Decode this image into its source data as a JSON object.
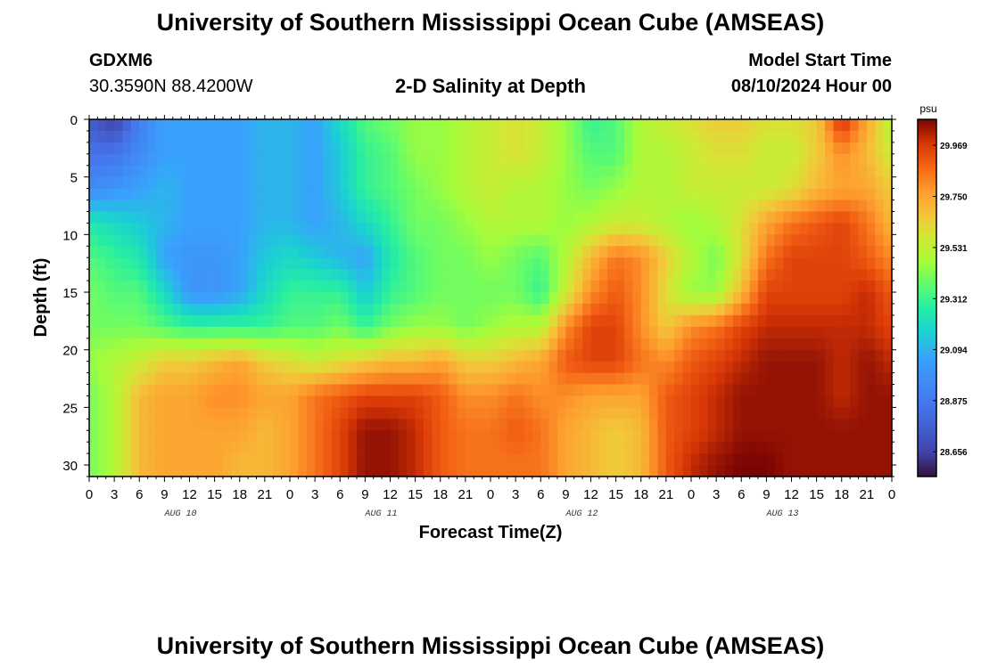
{
  "header": {
    "title": "University of Southern Mississippi Ocean Cube (AMSEAS)",
    "station_id": "GDXM6",
    "coordinates": "30.3590N  88.4200W",
    "plot_title": "2-D Salinity at Depth",
    "model_start_label": "Model Start Time",
    "model_start_value": "08/10/2024 Hour 00"
  },
  "footer": {
    "title": "University of Southern Mississippi Ocean Cube (AMSEAS)"
  },
  "chart_data": {
    "type": "heatmap",
    "title": "2-D Salinity at Depth",
    "xlabel": "Forecast Time(Z)",
    "ylabel": "Depth (ft)",
    "x_tick_labels": [
      "0",
      "3",
      "6",
      "9",
      "12",
      "15",
      "18",
      "21",
      "0",
      "3",
      "6",
      "9",
      "12",
      "15",
      "18",
      "21",
      "0",
      "3",
      "6",
      "9",
      "12",
      "15",
      "18",
      "21",
      "0",
      "3",
      "6",
      "9",
      "12",
      "15",
      "18",
      "21",
      "0"
    ],
    "day_labels": [
      "AUG 10",
      "AUG 11",
      "AUG 12",
      "AUG 13"
    ],
    "x_range_hours": [
      0,
      96
    ],
    "y_ticks": [
      0,
      5,
      10,
      15,
      20,
      25,
      30
    ],
    "y_range_ft": [
      0,
      31
    ],
    "colorbar": {
      "unit": "psu",
      "ticks": [
        "29.969",
        "29.750",
        "29.531",
        "29.312",
        "29.094",
        "28.875",
        "28.656"
      ],
      "min": 28.55,
      "max": 30.08
    },
    "salinity_grid": {
      "hours": [
        0,
        3,
        6,
        9,
        12,
        15,
        18,
        21,
        24,
        27,
        30,
        33,
        36,
        39,
        42,
        45,
        48,
        51,
        54,
        57,
        60,
        63,
        66,
        69,
        72,
        75,
        78,
        81,
        84,
        87,
        90,
        93,
        96
      ],
      "depths_ft": [
        0,
        3,
        6,
        9,
        12,
        15,
        18,
        21,
        24,
        27,
        30
      ],
      "values": [
        [
          28.75,
          28.65,
          28.9,
          29.05,
          29.05,
          29.05,
          29.05,
          29.1,
          29.1,
          29.05,
          29.2,
          29.35,
          29.4,
          29.45,
          29.45,
          29.5,
          29.55,
          29.6,
          29.55,
          29.45,
          29.3,
          29.35,
          29.5,
          29.55,
          29.6,
          29.65,
          29.65,
          29.6,
          29.6,
          29.65,
          30.0,
          29.75,
          29.5
        ],
        [
          28.85,
          28.85,
          28.95,
          29.05,
          29.05,
          29.05,
          29.05,
          29.1,
          29.1,
          29.05,
          29.15,
          29.3,
          29.35,
          29.45,
          29.45,
          29.5,
          29.55,
          29.6,
          29.55,
          29.45,
          29.35,
          29.35,
          29.5,
          29.5,
          29.55,
          29.6,
          29.6,
          29.55,
          29.55,
          29.65,
          29.8,
          29.7,
          29.55
        ],
        [
          28.95,
          29.0,
          29.05,
          29.1,
          29.05,
          29.05,
          29.05,
          29.1,
          29.1,
          29.05,
          29.15,
          29.3,
          29.35,
          29.4,
          29.45,
          29.5,
          29.55,
          29.5,
          29.5,
          29.45,
          29.4,
          29.45,
          29.5,
          29.5,
          29.55,
          29.55,
          29.55,
          29.55,
          29.6,
          29.7,
          29.75,
          29.75,
          29.65
        ],
        [
          29.25,
          29.2,
          29.15,
          29.1,
          29.05,
          29.05,
          29.05,
          29.1,
          29.1,
          29.05,
          29.1,
          29.2,
          29.3,
          29.4,
          29.4,
          29.45,
          29.5,
          29.5,
          29.5,
          29.45,
          29.5,
          29.55,
          29.55,
          29.5,
          29.45,
          29.5,
          29.6,
          29.75,
          29.85,
          29.9,
          29.95,
          29.85,
          29.7
        ],
        [
          29.35,
          29.3,
          29.25,
          29.05,
          29.0,
          29.0,
          29.05,
          29.15,
          29.2,
          29.15,
          29.1,
          29.05,
          29.25,
          29.35,
          29.4,
          29.4,
          29.45,
          29.4,
          29.35,
          29.5,
          29.7,
          29.85,
          29.8,
          29.65,
          29.5,
          29.4,
          29.6,
          29.85,
          29.95,
          29.95,
          29.95,
          29.9,
          29.8
        ],
        [
          29.4,
          29.35,
          29.35,
          29.2,
          29.0,
          29.0,
          29.05,
          29.2,
          29.3,
          29.3,
          29.3,
          29.15,
          29.3,
          29.35,
          29.4,
          29.4,
          29.4,
          29.4,
          29.3,
          29.55,
          29.8,
          29.9,
          29.8,
          29.6,
          29.45,
          29.45,
          29.7,
          29.95,
          29.95,
          29.95,
          29.95,
          30.0,
          29.9
        ],
        [
          29.4,
          29.4,
          29.4,
          29.35,
          29.3,
          29.3,
          29.3,
          29.3,
          29.35,
          29.35,
          29.4,
          29.3,
          29.4,
          29.45,
          29.45,
          29.4,
          29.45,
          29.5,
          29.5,
          29.8,
          29.95,
          29.95,
          29.8,
          29.65,
          29.8,
          29.85,
          29.95,
          30.0,
          30.0,
          30.0,
          30.0,
          30.0,
          29.95
        ],
        [
          29.45,
          29.5,
          29.55,
          29.65,
          29.65,
          29.7,
          29.75,
          29.65,
          29.6,
          29.55,
          29.6,
          29.65,
          29.7,
          29.7,
          29.75,
          29.65,
          29.65,
          29.7,
          29.75,
          29.9,
          29.95,
          29.95,
          29.85,
          29.8,
          29.9,
          29.95,
          30.0,
          30.05,
          30.05,
          30.05,
          30.0,
          30.05,
          30.0
        ],
        [
          29.4,
          29.5,
          29.7,
          29.75,
          29.75,
          29.8,
          29.8,
          29.75,
          29.75,
          29.85,
          29.9,
          29.95,
          29.95,
          29.95,
          29.9,
          29.8,
          29.8,
          29.85,
          29.8,
          29.8,
          29.75,
          29.75,
          29.75,
          29.9,
          29.95,
          30.0,
          30.05,
          30.05,
          30.05,
          30.05,
          30.0,
          30.05,
          30.05
        ],
        [
          29.4,
          29.5,
          29.7,
          29.75,
          29.75,
          29.75,
          29.75,
          29.7,
          29.75,
          29.85,
          29.95,
          30.05,
          30.05,
          30.0,
          29.9,
          29.85,
          29.85,
          29.9,
          29.85,
          29.75,
          29.7,
          29.65,
          29.7,
          29.9,
          29.95,
          30.0,
          30.05,
          30.05,
          30.05,
          30.05,
          30.05,
          30.05,
          30.05
        ],
        [
          29.4,
          29.5,
          29.7,
          29.75,
          29.75,
          29.75,
          29.7,
          29.7,
          29.75,
          29.85,
          29.95,
          30.05,
          30.05,
          30.0,
          29.9,
          29.85,
          29.85,
          29.85,
          29.85,
          29.75,
          29.7,
          29.65,
          29.7,
          29.9,
          30.0,
          30.05,
          30.08,
          30.08,
          30.05,
          30.05,
          30.05,
          30.05,
          30.05
        ]
      ]
    }
  }
}
